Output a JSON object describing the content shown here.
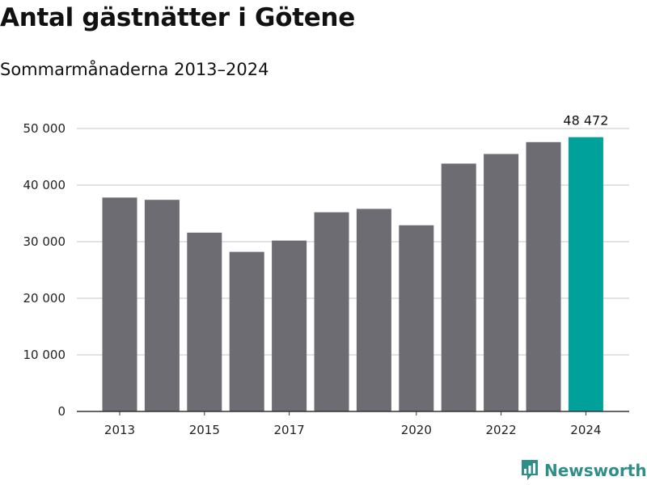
{
  "chart_data": {
    "type": "bar",
    "title": "Antal gästnätter i Götene",
    "subtitle": "Sommarmånaderna 2013–2024",
    "categories": [
      2013,
      2014,
      2015,
      2016,
      2017,
      2018,
      2019,
      2020,
      2021,
      2022,
      2023,
      2024
    ],
    "values": [
      37800,
      37400,
      31600,
      28200,
      30200,
      35200,
      35800,
      32900,
      43800,
      45500,
      47600,
      48472
    ],
    "x_tick_labels": [
      "2013",
      "2015",
      "2017",
      "2020",
      "2022",
      "2024"
    ],
    "y_ticks": [
      0,
      10000,
      20000,
      30000,
      40000,
      50000
    ],
    "y_tick_labels": [
      "0",
      "10 000",
      "20 000",
      "30 000",
      "40 000",
      "50 000"
    ],
    "ylim": [
      0,
      50000
    ],
    "grid": true,
    "highlight_index": 11,
    "highlight_label": "48 472",
    "colors": {
      "bar": "#6d6c72",
      "highlight": "#00a19a",
      "grid": "#d9d9d9",
      "axis": "#333333"
    }
  },
  "brand": {
    "name": "Newsworthy",
    "color": "#2f8f88",
    "icon": "bar-chart-logo-icon"
  }
}
